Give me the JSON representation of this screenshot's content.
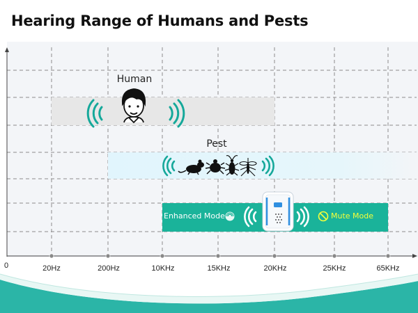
{
  "title": "Hearing Range of Humans and Pests",
  "colors": {
    "human_band": "#e7e7e7",
    "pest_band": "#e3f5fc",
    "device_band": "#1ab39a",
    "wave_teal": "#15a89a",
    "mute_text": "#f4ff3a",
    "footer_teal": "#2bb5a7"
  },
  "chart_data": {
    "type": "bar",
    "orientation": "horizontal",
    "x_ticks": [
      "20Hz",
      "200Hz",
      "10KHz",
      "15KHz",
      "20KHz",
      "25KHz",
      "65KHz"
    ],
    "origin_label": "0",
    "grid": true,
    "ranges": [
      {
        "name": "Human",
        "from": "20Hz",
        "to": "20KHz",
        "icon": "human-face-icon"
      },
      {
        "name": "Pest",
        "from": "200Hz",
        "to": "65KHz",
        "icon": "pest-icons"
      },
      {
        "name": "",
        "from": "10KHz",
        "to": "65KHz",
        "icon": "repeller-device-icon",
        "segments": [
          {
            "label": "Enhanced Mode",
            "from": "10KHz",
            "to": "20KHz",
            "icon": "enhanced-mode-icon"
          },
          {
            "label": "Mute Mode",
            "from": "20KHz",
            "to": "65KHz",
            "icon": "mute-mode-icon"
          }
        ]
      }
    ]
  }
}
